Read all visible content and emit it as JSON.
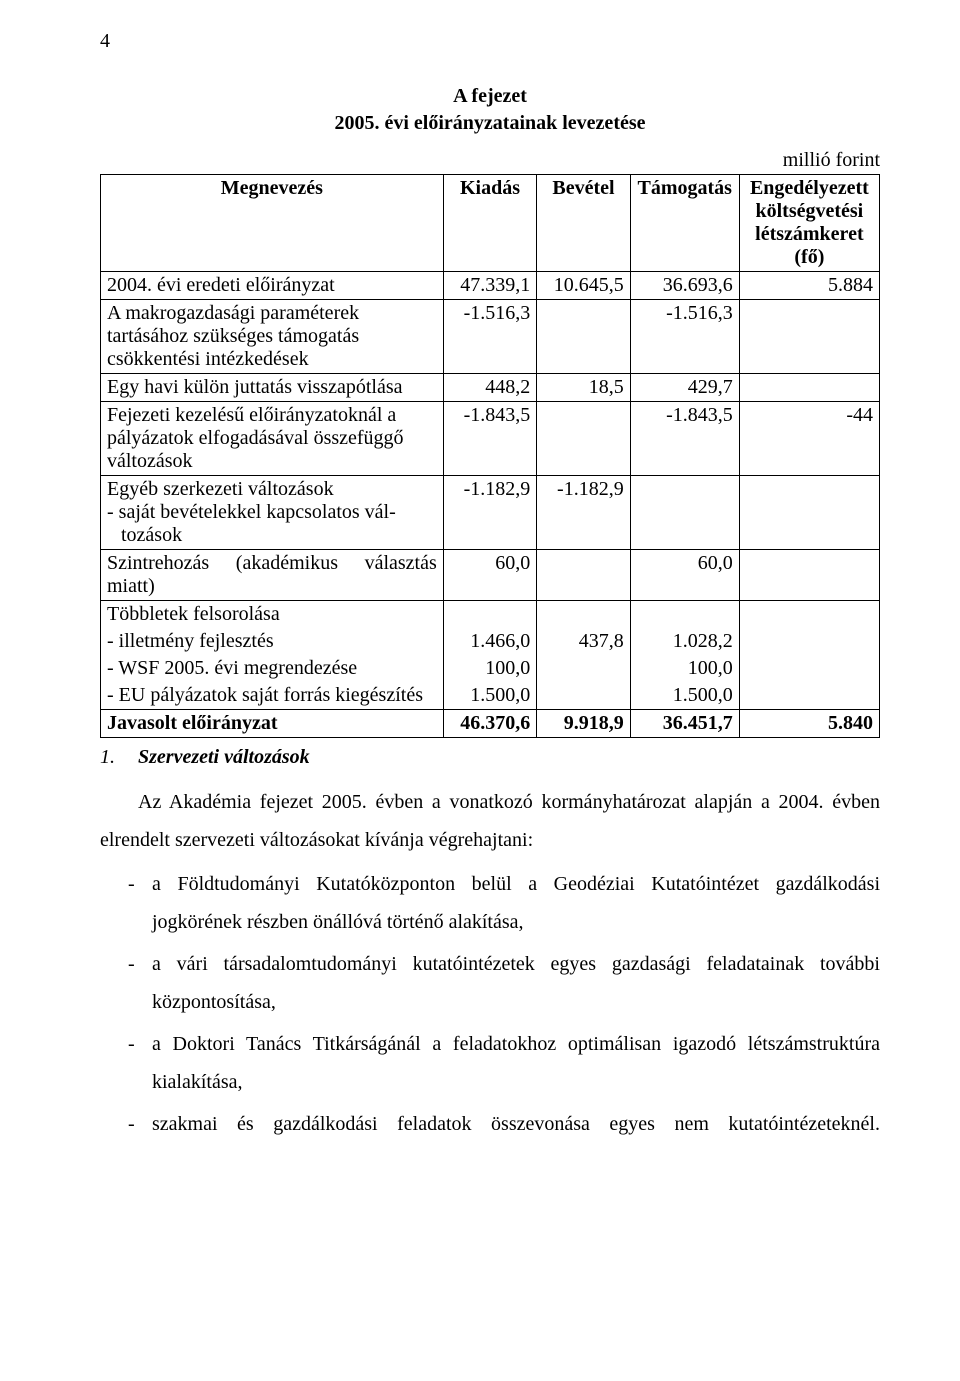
{
  "page_number": "4",
  "title_line1": "A fejezet",
  "title_line2": "2005. évi előirányzatainak levezetése",
  "unit_note": "millió forint",
  "table": {
    "headers": {
      "c1": "Megnevezés",
      "c2": "Kiadás",
      "c3": "Bevétel",
      "c4": "Támogatás",
      "c5": "Engedélyezett költségvetési létszámkeret (fő)"
    },
    "rows": [
      {
        "label": "2004. évi eredeti előirányzat",
        "kiadas": "47.339,1",
        "bevetel": "10.645,5",
        "tamogatas": "36.693,6",
        "letszam": "5.884",
        "justify": false
      },
      {
        "label": "A makrogazdasági paraméterek tartásához szükséges támogatás csökkentési intézkedések",
        "kiadas": "-1.516,3",
        "bevetel": "",
        "tamogatas": "-1.516,3",
        "letszam": "",
        "justify": true
      },
      {
        "label": "Egy havi külön juttatás visszapótlása",
        "kiadas": "448,2",
        "bevetel": "18,5",
        "tamogatas": "429,7",
        "letszam": "",
        "justify": false
      },
      {
        "label": "Fejezeti kezelésű előirányzatoknál a pályázatok elfogadásával összefüggő változások",
        "kiadas": "-1.843,5",
        "bevetel": "",
        "tamogatas": "-1.843,5",
        "letszam": "-44",
        "justify": true
      },
      {
        "label": "Egyéb szerkezeti változások\n- saját bevételekkel kapcsolatos változások",
        "kiadas": "-1.182,9",
        "bevetel": "-1.182,9",
        "tamogatas": "",
        "letszam": "",
        "justify": false,
        "multiline": true,
        "line1": "Egyéb szerkezeti változások",
        "line2_pre": "- saját bevételekkel kapcsolatos vál-",
        "line3": "tozások"
      },
      {
        "label": "Szintrehozás (akadémikus választás miatt)",
        "kiadas": "60,0",
        "bevetel": "",
        "tamogatas": "60,0",
        "letszam": "",
        "justify": true,
        "line1": "Szintrehozás   (akadémikus   választás",
        "line2": "miatt)",
        "two_line_justify": true
      },
      {
        "label": "Többletek felsorolása",
        "kiadas": "",
        "bevetel": "",
        "tamogatas": "",
        "letszam": "",
        "justify": false,
        "multiblock": true,
        "sub": [
          {
            "t": "- illetmény fejlesztés",
            "k": "1.466,0",
            "b": "437,8",
            "ta": "1.028,2"
          },
          {
            "t": "- WSF 2005. évi megrendezése",
            "k": "100,0",
            "b": "",
            "ta": "100,0"
          },
          {
            "t": "- EU pályázatok saját forrás kiegészítés",
            "k": "1.500,0",
            "b": "",
            "ta": "1.500,0"
          }
        ]
      },
      {
        "label": "Javasolt előirányzat",
        "kiadas": "46.370,6",
        "bevetel": "9.918,9",
        "tamogatas": "36.451,7",
        "letszam": "5.840",
        "bold": true
      }
    ]
  },
  "section": {
    "number": "1.",
    "heading": "Szervezeti változások",
    "para1": "Az Akadémia fejezet 2005. évben a vonatkozó kormányhatározat alapján a 2004. évben elrendelt szervezeti változásokat kívánja végrehajtani:",
    "bullets": [
      "a Földtudományi Kutatóközponton belül a Geodéziai Kutatóintézet gazdálkodási jogkörének részben önállóvá történő alakítása,",
      "a vári társadalomtudományi kutatóintézetek egyes gazdasági feladatainak további központosítása,",
      "a Doktori Tanács Titkárságánál a feladatokhoz optimálisan igazodó létszámstruktúra kialakítása,",
      "szakmai és gazdálkodási feladatok összevonása egyes nem kutatóintézeteknél."
    ]
  },
  "col_widths": {
    "c1": "44%",
    "c2": "12%",
    "c3": "12%",
    "c4": "14%",
    "c5": "18%"
  }
}
